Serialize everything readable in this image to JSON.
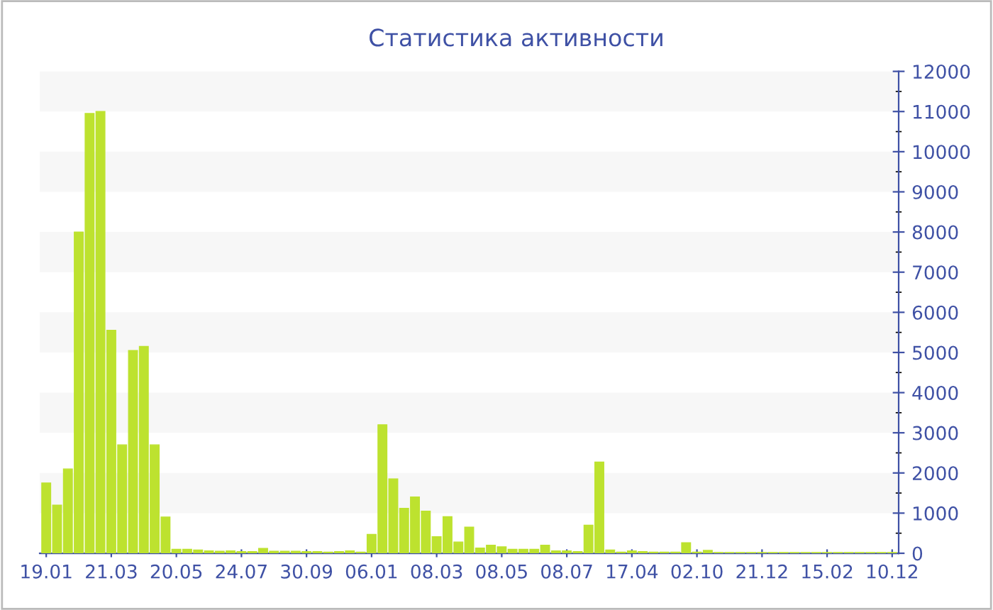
{
  "chart_data": {
    "type": "bar",
    "title": "Статистика активности",
    "categories": [
      "19.01",
      null,
      null,
      null,
      null,
      null,
      "21.03",
      null,
      null,
      null,
      null,
      null,
      "20.05",
      null,
      null,
      null,
      null,
      null,
      "24.07",
      null,
      null,
      null,
      null,
      null,
      "30.09",
      null,
      null,
      null,
      null,
      null,
      "06.01",
      null,
      null,
      null,
      null,
      null,
      "08.03",
      null,
      null,
      null,
      null,
      null,
      "08.05",
      null,
      null,
      null,
      null,
      null,
      "08.07",
      null,
      null,
      null,
      null,
      null,
      "17.04",
      null,
      null,
      null,
      null,
      null,
      "02.10",
      null,
      null,
      null,
      null,
      null,
      "21.12",
      null,
      null,
      null,
      null,
      null,
      "15.02",
      null,
      null,
      null,
      null,
      null,
      "10.12"
    ],
    "values": [
      1750,
      1200,
      2100,
      8000,
      10950,
      11000,
      5550,
      2700,
      5050,
      5150,
      2700,
      900,
      100,
      100,
      80,
      60,
      50,
      60,
      40,
      40,
      120,
      50,
      50,
      50,
      40,
      40,
      30,
      40,
      60,
      30,
      470,
      3200,
      1850,
      1120,
      1400,
      1050,
      410,
      910,
      280,
      650,
      130,
      200,
      160,
      100,
      100,
      100,
      200,
      60,
      60,
      40,
      700,
      2270,
      80,
      30,
      60,
      40,
      30,
      30,
      30,
      260,
      30,
      70,
      20,
      20,
      20,
      20,
      20,
      20,
      20,
      20,
      20,
      20,
      20,
      20,
      20,
      20,
      20,
      20,
      20
    ],
    "color": "#bde22f",
    "ylim": [
      0,
      12000
    ],
    "yticks": [
      0,
      1000,
      2000,
      3000,
      4000,
      5000,
      6000,
      7000,
      8000,
      9000,
      10000,
      11000,
      12000
    ],
    "bands": [
      {
        "axis": "y",
        "from": 1000,
        "to": 2000,
        "color": "#f7f7f7"
      },
      {
        "axis": "y",
        "from": 3000,
        "to": 4000,
        "color": "#f7f7f7"
      },
      {
        "axis": "y",
        "from": 5000,
        "to": 6000,
        "color": "#f7f7f7"
      },
      {
        "axis": "y",
        "from": 7000,
        "to": 8000,
        "color": "#f7f7f7"
      },
      {
        "axis": "y",
        "from": 9000,
        "to": 10000,
        "color": "#f7f7f7"
      },
      {
        "axis": "y",
        "from": 11000,
        "to": 12000,
        "color": "#f7f7f7"
      }
    ]
  }
}
